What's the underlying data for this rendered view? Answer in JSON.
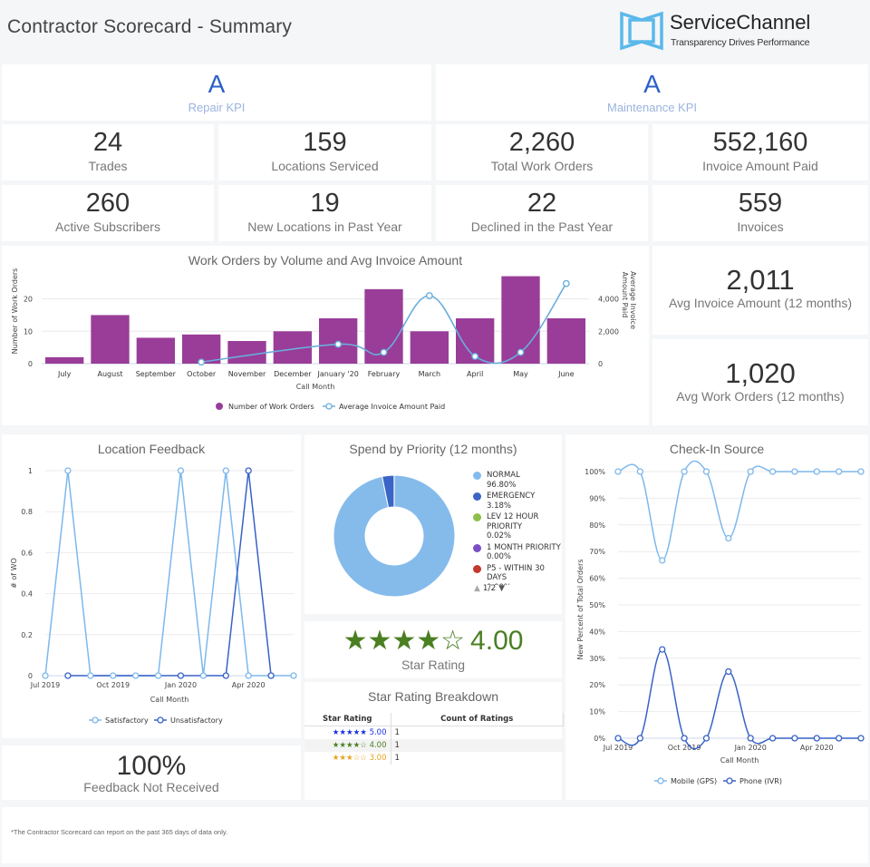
{
  "header": {
    "title": "Contractor Scorecard - Summary",
    "logo": {
      "name": "ServiceChannel",
      "tagline": "Transparency Drives Performance",
      "color": "#5bb8ea"
    }
  },
  "kpis": [
    {
      "grade": "A",
      "label": "Repair KPI"
    },
    {
      "grade": "A",
      "label": "Maintenance KPI"
    }
  ],
  "stats_row1": [
    {
      "value": "24",
      "label": "Trades"
    },
    {
      "value": "159",
      "label": "Locations Serviced"
    },
    {
      "value": "2,260",
      "label": "Total Work Orders"
    },
    {
      "value": "552,160",
      "label": "Invoice Amount Paid"
    }
  ],
  "stats_row2": [
    {
      "value": "260",
      "label": "Active Subscribers"
    },
    {
      "value": "19",
      "label": "New Locations in Past Year"
    },
    {
      "value": "22",
      "label": "Declined in the Past Year"
    },
    {
      "value": "559",
      "label": "Invoices"
    }
  ],
  "averages": [
    {
      "value": "2,011",
      "label": "Avg Invoice Amount (12 months)"
    },
    {
      "value": "1,020",
      "label": "Avg Work Orders (12 months)"
    }
  ],
  "star_rating": {
    "stars": "★★★★☆",
    "value": "4.00",
    "label": "Star Rating",
    "color": "#4a7f22"
  },
  "star_breakdown": {
    "title": "Star Rating Breakdown",
    "columns": [
      "Star Rating",
      "Count of Ratings"
    ],
    "rows": [
      {
        "stars": "★★★★★",
        "rating": "5.00",
        "count": "1",
        "color": "#1a2fe0"
      },
      {
        "stars": "★★★★☆",
        "rating": "4.00",
        "count": "1",
        "color": "#4a7f22"
      },
      {
        "stars": "★★★☆☆",
        "rating": "3.00",
        "count": "1",
        "color": "#e8a21c"
      }
    ]
  },
  "feedback": {
    "value": "100%",
    "label": "Feedback Not Received"
  },
  "footnote": "*The Contractor Scorecard can report on the past 365 days of data only.",
  "chart_data": [
    {
      "id": "work-orders",
      "type": "bar",
      "title": "Work Orders by Volume and Avg Invoice Amount",
      "xlabel": "Call Month",
      "ylabel": "Number of Work Orders",
      "y2label": "Average Invoice Amount Paid",
      "categories": [
        "July",
        "August",
        "September",
        "October",
        "November",
        "December",
        "January '20",
        "February",
        "March",
        "April",
        "May",
        "June"
      ],
      "ylim": [
        0,
        28
      ],
      "yticks": [
        0,
        10,
        20
      ],
      "y2lim": [
        0,
        5600
      ],
      "y2ticks": [
        0,
        2000,
        4000
      ],
      "y2tick_labels": [
        "0",
        "2,000",
        "4,000"
      ],
      "series": [
        {
          "name": "Number of Work Orders",
          "type": "bar",
          "color": "#993d99",
          "values": [
            2,
            15,
            8,
            9,
            7,
            10,
            14,
            23,
            10,
            14,
            27,
            14
          ]
        },
        {
          "name": "Average Invoice Amount Paid",
          "type": "line",
          "axis": "right",
          "color": "#6aaedc",
          "values": [
            null,
            null,
            null,
            100,
            null,
            null,
            1200,
            700,
            4200,
            450,
            700,
            4950
          ]
        }
      ],
      "legend": "bottom",
      "grid": true
    },
    {
      "id": "location-feedback",
      "type": "line",
      "title": "Location Feedback",
      "xlabel": "Call Month",
      "ylabel": "# of WO",
      "x": [
        "2019-07",
        "2019-08",
        "2019-09",
        "2019-10",
        "2019-11",
        "2019-12",
        "2020-01",
        "2020-02",
        "2020-03",
        "2020-04",
        "2020-05",
        "2020-06"
      ],
      "xtick_labels": [
        "Jul 2019",
        "Oct 2019",
        "Jan 2020",
        "Apr 2020"
      ],
      "xtick_index": [
        0,
        3,
        6,
        9
      ],
      "ylim": [
        0,
        1
      ],
      "yticks": [
        0,
        0.2,
        0.4,
        0.6,
        0.8,
        1
      ],
      "series": [
        {
          "name": "Satisfactory",
          "color": "#7db8ec",
          "values": [
            0,
            1,
            0,
            0,
            0,
            0,
            1,
            0,
            1,
            0,
            0,
            0
          ]
        },
        {
          "name": "Unsatisfactory",
          "color": "#3862c7",
          "points": [
            [
              1,
              0
            ],
            [
              6,
              0
            ],
            [
              8,
              0
            ],
            [
              9,
              1
            ],
            [
              10,
              0
            ]
          ]
        }
      ],
      "legend": "bottom",
      "grid": true
    },
    {
      "id": "spend-by-priority",
      "type": "pie",
      "title": "Spend by Priority (12 months)",
      "donut": true,
      "slices": [
        {
          "label": "NORMAL",
          "value": 96.8,
          "display": "96.80%",
          "color": "#85bbeb"
        },
        {
          "label": "EMERGENCY",
          "value": 3.18,
          "display": "3.18%",
          "color": "#3a64c5"
        },
        {
          "label": "LEV 12 HOUR PRIORITY",
          "value": 0.02,
          "display": "0.02%",
          "color": "#8fbf4a"
        },
        {
          "label": "1 MONTH PRIORITY",
          "value": 0.0,
          "display": "0.00%",
          "color": "#7a4fc6"
        },
        {
          "label": "P5 - WITHIN 30 DAYS",
          "value": 0.0,
          "display": "0.00%",
          "color": "#c2392d"
        }
      ],
      "legend": "right",
      "legend_page": "1/2"
    },
    {
      "id": "check-in-source",
      "type": "line",
      "title": "Check-In Source",
      "xlabel": "Call Month",
      "ylabel": "New Percent of Total Orders",
      "x": [
        "2019-07",
        "2019-08",
        "2019-09",
        "2019-10",
        "2019-11",
        "2019-12",
        "2020-01",
        "2020-02",
        "2020-03",
        "2020-04",
        "2020-05",
        "2020-06"
      ],
      "xtick_labels": [
        "Jul 2019",
        "Oct 2019",
        "Jan 2020",
        "Apr 2020"
      ],
      "xtick_index": [
        0,
        3,
        6,
        9
      ],
      "ylim": [
        0,
        100
      ],
      "yticks": [
        0,
        10,
        20,
        30,
        40,
        50,
        60,
        70,
        80,
        90,
        100
      ],
      "series": [
        {
          "name": "Mobile (GPS)",
          "color": "#7db8ec",
          "values": [
            100,
            100,
            66.7,
            100,
            100,
            75,
            100,
            100,
            100,
            100,
            100,
            100
          ]
        },
        {
          "name": "Phone (IVR)",
          "color": "#3862c7",
          "values": [
            0,
            0,
            33.3,
            0,
            0,
            25,
            0,
            0,
            0,
            0,
            0,
            0
          ]
        }
      ],
      "legend": "bottom",
      "grid": true
    }
  ]
}
